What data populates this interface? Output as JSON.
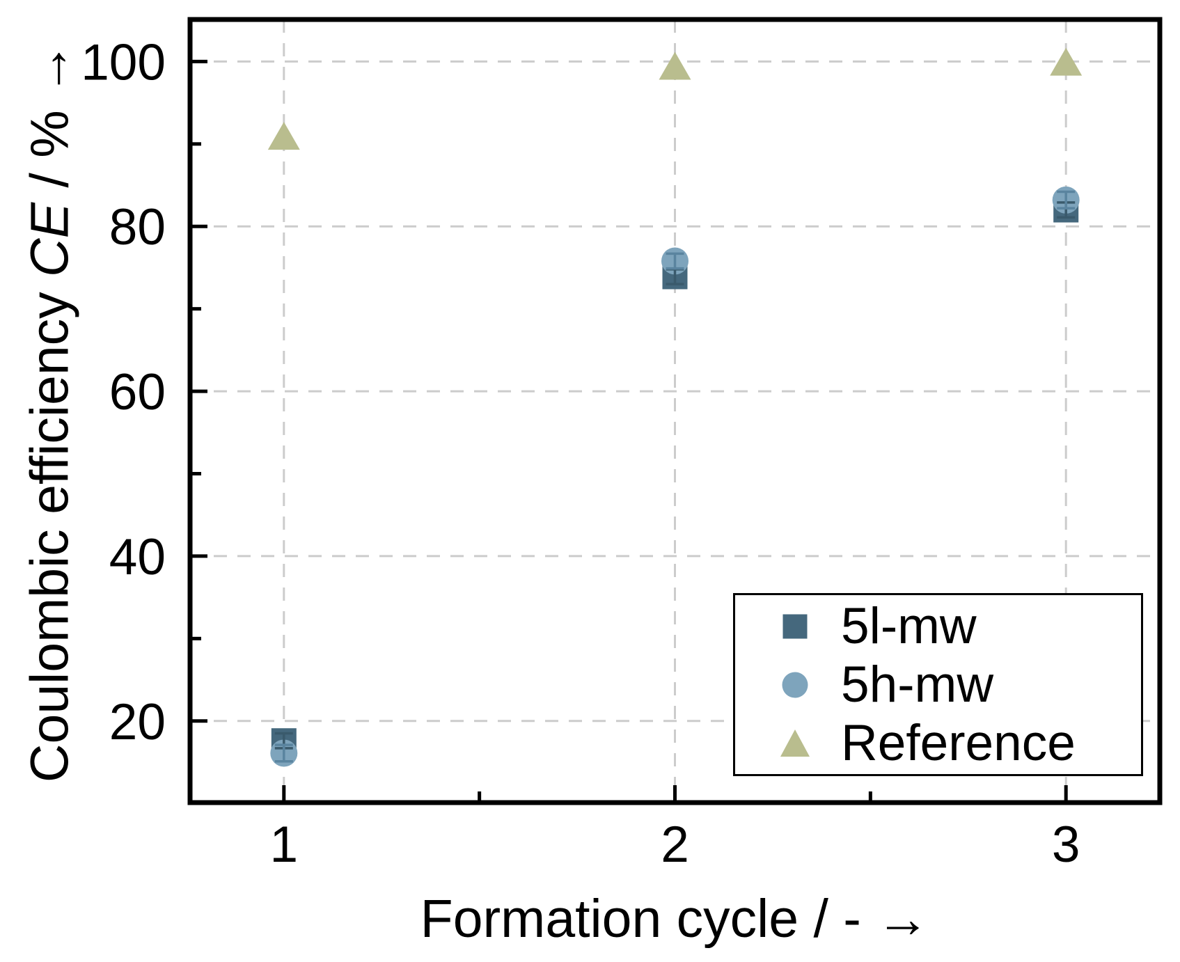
{
  "chart_data": {
    "type": "scatter",
    "title": "",
    "xlabel": "Formation cycle / - →",
    "ylabel_prefix": "Coulombic efficiency ",
    "ylabel_symbol": "CE",
    "ylabel_suffix": " / % →",
    "x": [
      1,
      2,
      3
    ],
    "series": [
      {
        "name": "5l-mw",
        "marker": "square",
        "color": "#45687d",
        "error_color": "#3a5a6c",
        "values": [
          17.6,
          73.9,
          82.0
        ],
        "errors": [
          0.9,
          0.9,
          0.9
        ]
      },
      {
        "name": "5h-mw",
        "marker": "circle",
        "color": "#7ea4bc",
        "error_color": "#5a849f",
        "values": [
          16.1,
          75.8,
          83.2
        ],
        "errors": [
          1.0,
          0.9,
          1.0
        ]
      },
      {
        "name": "Reference",
        "marker": "triangle",
        "color": "#b9bd8e",
        "error_color": null,
        "values": [
          90.9,
          99.4,
          99.9
        ],
        "errors": [
          0,
          0,
          0
        ]
      }
    ],
    "xlim": [
      0.76,
      3.24
    ],
    "ylim": [
      10.1,
      105.1
    ],
    "x_major_ticks": [
      1,
      2,
      3
    ],
    "x_minor_ticks": [
      1.5,
      2.5
    ],
    "y_major_ticks": [
      20,
      40,
      60,
      80,
      100
    ],
    "y_minor_ticks": [
      30,
      50,
      70,
      90
    ],
    "grid": {
      "show": true,
      "color": "#cccccc",
      "dash": "19 15"
    },
    "axis_color": "#000000",
    "background": "#ffffff",
    "legend": {
      "position": "bottom-right"
    }
  }
}
